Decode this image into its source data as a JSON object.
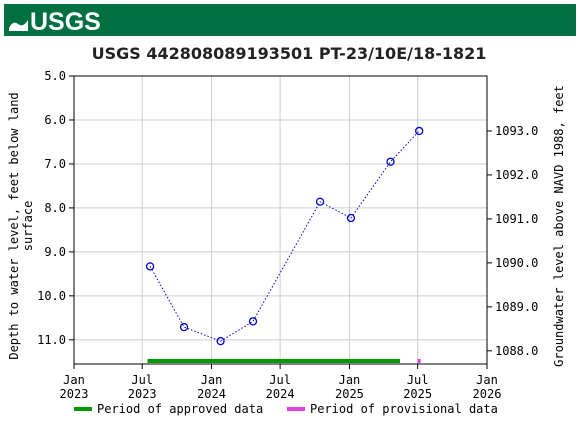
{
  "banner": {
    "logo_text": "USGS",
    "color": "#006f41"
  },
  "chart_data": {
    "type": "line",
    "title": "USGS 442808089193501 PT-23/10E/18-1821",
    "ylabel_left": "Depth to water level, feet below land surface",
    "ylabel_left_lines": [
      "Depth to water level, feet below land",
      "surface"
    ],
    "ylabel_right": "Groundwater level above NAVD 1988, feet",
    "x_ticks": [
      {
        "date": "2023-01-01",
        "line1": "Jan",
        "line2": "2023"
      },
      {
        "date": "2023-07-01",
        "line1": "Jul",
        "line2": "2023"
      },
      {
        "date": "2024-01-01",
        "line1": "Jan",
        "line2": "2024"
      },
      {
        "date": "2024-07-01",
        "line1": "Jul",
        "line2": "2024"
      },
      {
        "date": "2025-01-01",
        "line1": "Jan",
        "line2": "2025"
      },
      {
        "date": "2025-07-01",
        "line1": "Jul",
        "line2": "2025"
      },
      {
        "date": "2026-01-01",
        "line1": "Jan",
        "line2": "2026"
      }
    ],
    "xlim": [
      "2023-01-01",
      "2026-01-01"
    ],
    "ylim_left": [
      11.55,
      5.0
    ],
    "y_ticks_left": [
      "5.0",
      "6.0",
      "7.0",
      "8.0",
      "9.0",
      "10.0",
      "11.0"
    ],
    "y_ticks_right": [
      "1093.0",
      "1092.0",
      "1091.0",
      "1090.0",
      "1089.0",
      "1088.0"
    ],
    "right_axis_datum_offset": 1099.25,
    "grid": true,
    "series": [
      {
        "color": "#0000cc",
        "marker": "open-circle",
        "line_style": "dotted",
        "x": [
          "2023-07-22",
          "2023-10-20",
          "2024-01-25",
          "2024-04-20",
          "2024-10-15",
          "2025-01-05",
          "2025-04-20",
          "2025-07-05"
        ],
        "y": [
          9.33,
          10.71,
          11.03,
          10.58,
          7.86,
          8.23,
          6.95,
          6.25
        ]
      }
    ],
    "approval_periods": [
      {
        "status": "approved",
        "color": "#009900",
        "start": "2023-07-15",
        "end": "2025-05-15"
      },
      {
        "status": "provisional",
        "color": "#dd44dd",
        "start": "2025-07-01",
        "end": "2025-07-08"
      }
    ],
    "legend": [
      {
        "label": "Period of approved data",
        "color": "#009900"
      },
      {
        "label": "Period of provisional data",
        "color": "#dd44dd"
      }
    ],
    "legend_position": "bottom"
  }
}
